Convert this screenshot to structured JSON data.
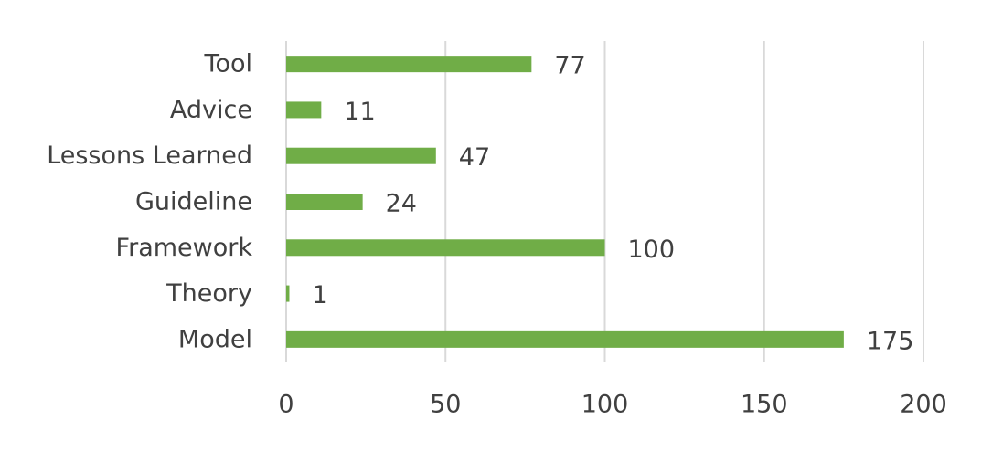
{
  "chart_data": {
    "type": "bar",
    "orientation": "horizontal",
    "categories": [
      "Tool",
      "Advice",
      "Lessons Learned",
      "Guideline",
      "Framework",
      "Theory",
      "Model"
    ],
    "values": [
      77,
      11,
      47,
      24,
      100,
      1,
      175
    ],
    "color": "#70ad47",
    "xlim": [
      0,
      200
    ],
    "xticks": [
      0,
      50,
      100,
      150,
      200
    ],
    "grid": true
  }
}
